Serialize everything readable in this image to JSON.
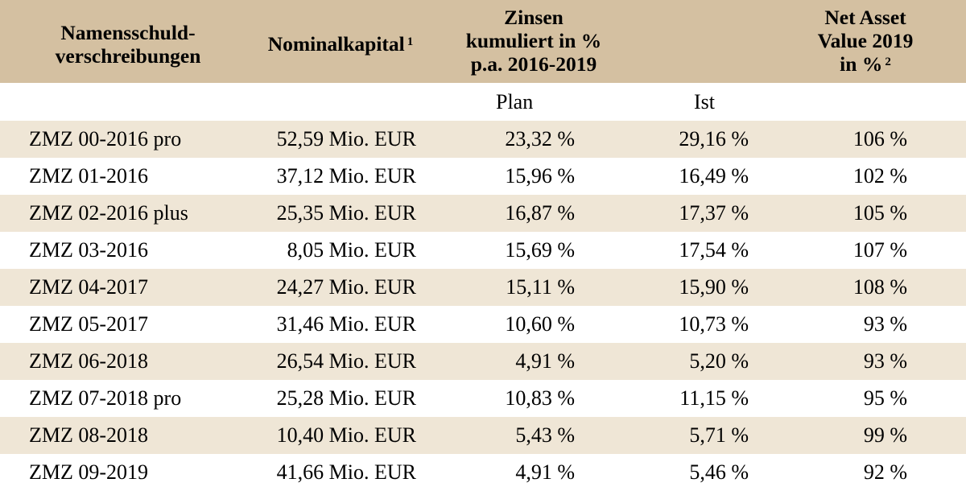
{
  "headers": {
    "name": [
      "Namensschuld-",
      "verschreibungen"
    ],
    "nominal": "Nominalkapital",
    "nominal_sup": "1",
    "zinsen": [
      "Zinsen",
      "kumuliert in %",
      "p.a. 2016-2019"
    ],
    "nav": [
      "Net Asset",
      "Value 2019",
      "in %"
    ],
    "nav_sup": "2"
  },
  "subheaders": {
    "plan": "Plan",
    "ist": "Ist"
  },
  "colors": {
    "header_bg": "#d4c0a1",
    "row_shade": "#efe6d6"
  },
  "rows": [
    {
      "name": "ZMZ 00-2016 pro",
      "nominal": "52,59 Mio. EUR",
      "plan": "23,32 %",
      "ist": "29,16 %",
      "nav": "106 %"
    },
    {
      "name": "ZMZ 01-2016",
      "nominal": "37,12 Mio. EUR",
      "plan": "15,96 %",
      "ist": "16,49 %",
      "nav": "102 %"
    },
    {
      "name": "ZMZ 02-2016 plus",
      "nominal": "25,35 Mio. EUR",
      "plan": "16,87 %",
      "ist": "17,37 %",
      "nav": "105 %"
    },
    {
      "name": "ZMZ 03-2016",
      "nominal": "8,05 Mio. EUR",
      "plan": "15,69 %",
      "ist": "17,54 %",
      "nav": "107 %"
    },
    {
      "name": "ZMZ 04-2017",
      "nominal": "24,27 Mio. EUR",
      "plan": "15,11 %",
      "ist": "15,90 %",
      "nav": "108 %"
    },
    {
      "name": "ZMZ 05-2017",
      "nominal": "31,46 Mio. EUR",
      "plan": "10,60 %",
      "ist": "10,73 %",
      "nav": "93 %"
    },
    {
      "name": "ZMZ 06-2018",
      "nominal": "26,54 Mio. EUR",
      "plan": "4,91 %",
      "ist": "5,20 %",
      "nav": "93 %"
    },
    {
      "name": "ZMZ 07-2018 pro",
      "nominal": "25,28 Mio. EUR",
      "plan": "10,83 %",
      "ist": "11,15 %",
      "nav": "95 %"
    },
    {
      "name": "ZMZ 08-2018",
      "nominal": "10,40 Mio. EUR",
      "plan": "5,43 %",
      "ist": "5,71 %",
      "nav": "99 %"
    },
    {
      "name": "ZMZ 09-2019",
      "nominal": "41,66 Mio. EUR",
      "plan": "4,91 %",
      "ist": "5,46 %",
      "nav": "92 %"
    }
  ]
}
